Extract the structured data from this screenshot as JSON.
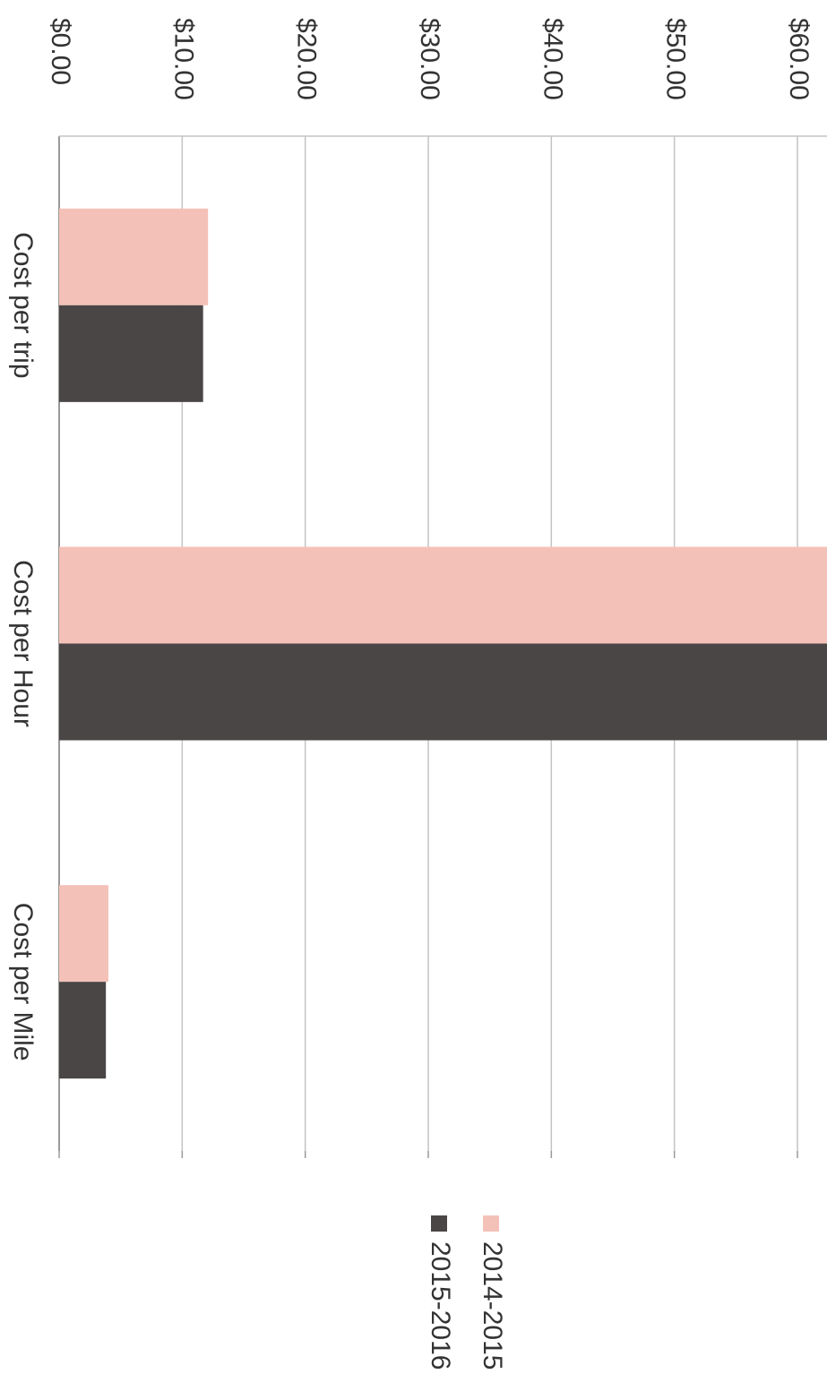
{
  "chart_data": {
    "type": "bar",
    "orientation": "horizontal",
    "categories": [
      "Cost per trip",
      "Cost per Hour",
      "Cost per Mile"
    ],
    "series": [
      {
        "name": "2014-2015",
        "values": [
          12.1,
          62.5,
          4.0
        ],
        "color": "#f4c1b8"
      },
      {
        "name": "2015-2016",
        "values": [
          11.7,
          62.5,
          3.8
        ],
        "color": "#4a4646"
      }
    ],
    "xlim": [
      0,
      60
    ],
    "x_ticks": [
      "$0.00",
      "$10.00",
      "$20.00",
      "$30.00",
      "$40.00",
      "$50.00",
      "$60.00"
    ],
    "x_tick_values": [
      0,
      10,
      20,
      30,
      40,
      50,
      60
    ],
    "grid": true,
    "legend_position": "bottom",
    "rotation": "90deg clockwise",
    "title": "",
    "xlabel": "",
    "ylabel": ""
  }
}
